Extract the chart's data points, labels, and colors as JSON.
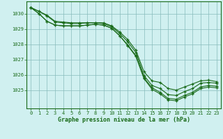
{
  "x": [
    0,
    1,
    2,
    3,
    4,
    5,
    6,
    7,
    8,
    9,
    10,
    11,
    12,
    13,
    14,
    15,
    16,
    17,
    18,
    19,
    20,
    21,
    22,
    23
  ],
  "lines": [
    [
      1030.4,
      1030.15,
      1029.9,
      1029.5,
      1029.45,
      1029.4,
      1029.4,
      1029.4,
      1029.4,
      1029.4,
      1029.2,
      1028.8,
      1028.3,
      1027.6,
      1026.2,
      1025.6,
      1025.5,
      1025.1,
      1025.0,
      1025.2,
      1025.4,
      1025.6,
      1025.65,
      1025.55
    ],
    [
      1030.4,
      1030.15,
      1029.85,
      1029.45,
      1029.4,
      1029.35,
      1029.35,
      1029.4,
      1029.4,
      1029.35,
      1029.15,
      1028.7,
      1028.15,
      1027.45,
      1025.95,
      1025.3,
      1025.1,
      1024.7,
      1024.65,
      1024.9,
      1025.1,
      1025.45,
      1025.5,
      1025.45
    ],
    [
      1030.4,
      1030.0,
      1029.5,
      1029.25,
      1029.2,
      1029.2,
      1029.2,
      1029.25,
      1029.3,
      1029.25,
      1029.05,
      1028.55,
      1027.95,
      1027.25,
      1025.8,
      1025.15,
      1024.85,
      1024.45,
      1024.4,
      1024.65,
      1024.85,
      1025.2,
      1025.3,
      1025.25
    ],
    [
      1030.4,
      1030.0,
      1029.5,
      1029.25,
      1029.2,
      1029.2,
      1029.2,
      1029.25,
      1029.3,
      1029.25,
      1029.05,
      1028.55,
      1027.9,
      1027.2,
      1025.75,
      1025.05,
      1024.75,
      1024.35,
      1024.3,
      1024.55,
      1024.75,
      1025.1,
      1025.2,
      1025.15
    ]
  ],
  "line_color": "#1a6b1a",
  "marker": "+",
  "bg_color": "#d0f0f0",
  "grid_color": "#88bbbb",
  "axis_color": "#1a6b1a",
  "label_color": "#1a6b1a",
  "xlabel": "Graphe pression niveau de la mer (hPa)",
  "ylim": [
    1023.8,
    1030.8
  ],
  "yticks": [
    1025,
    1026,
    1027,
    1028,
    1029,
    1030
  ],
  "xticks": [
    0,
    1,
    2,
    3,
    4,
    5,
    6,
    7,
    8,
    9,
    10,
    11,
    12,
    13,
    14,
    15,
    16,
    17,
    18,
    19,
    20,
    21,
    22,
    23
  ]
}
